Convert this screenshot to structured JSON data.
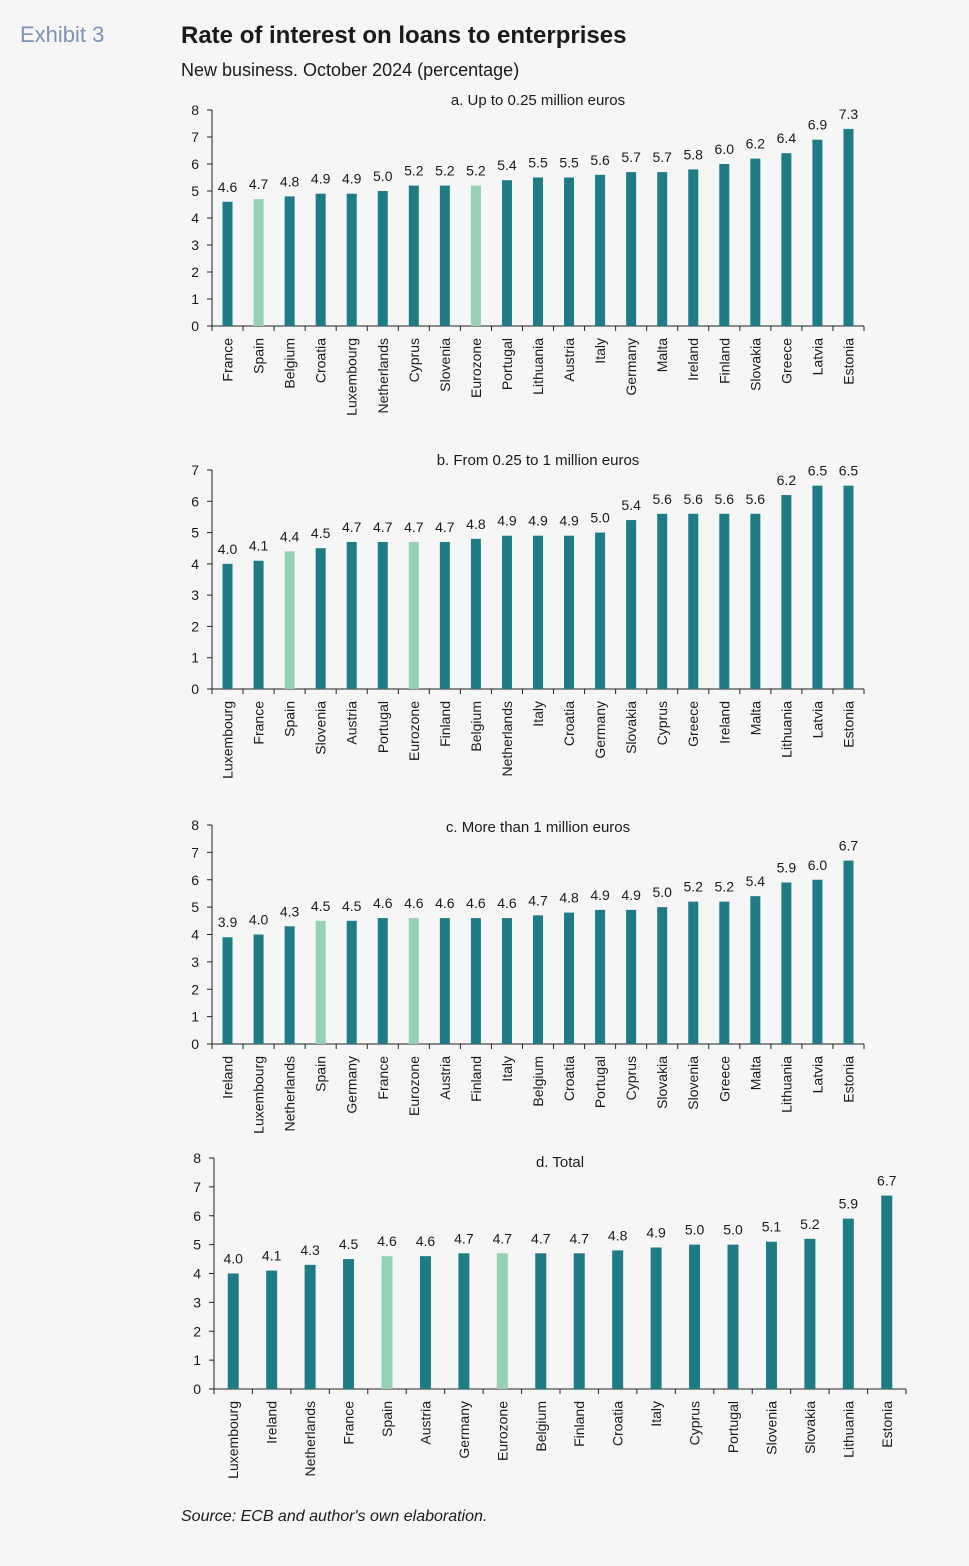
{
  "header": {
    "exhibit": "Exhibit 3",
    "title": "Rate of interest on loans to enterprises",
    "subtitle": "New business. October 2024 (percentage)"
  },
  "footer": {
    "source": "Source: ECB and author's own elaboration."
  },
  "colors": {
    "bar": "#1f7b85",
    "highlight": "#97d1b4",
    "axis": "#222222"
  },
  "chart_data": [
    {
      "type": "bar",
      "title": "a. Up to 0.25 million euros",
      "ylim": [
        0,
        8
      ],
      "yticks": [
        0,
        1,
        2,
        3,
        4,
        5,
        6,
        7,
        8
      ],
      "categories": [
        "France",
        "Spain",
        "Belgium",
        "Croatia",
        "Luxembourg",
        "Netherlands",
        "Cyprus",
        "Slovenia",
        "Eurozone",
        "Portugal",
        "Lithuania",
        "Austria",
        "Italy",
        "Germany",
        "Malta",
        "Ireland",
        "Finland",
        "Slovakia",
        "Greece",
        "Latvia",
        "Estonia"
      ],
      "values": [
        4.6,
        4.7,
        4.8,
        4.9,
        4.9,
        5.0,
        5.2,
        5.2,
        5.2,
        5.4,
        5.5,
        5.5,
        5.6,
        5.7,
        5.7,
        5.8,
        6.0,
        6.2,
        6.4,
        6.9,
        7.3
      ],
      "highlight": [
        "Spain",
        "Eurozone"
      ],
      "grid": false
    },
    {
      "type": "bar",
      "title": "b. From 0.25 to 1 million euros",
      "ylim": [
        0,
        7
      ],
      "yticks": [
        0,
        1,
        2,
        3,
        4,
        5,
        6,
        7
      ],
      "categories": [
        "Luxembourg",
        "France",
        "Spain",
        "Slovenia",
        "Austria",
        "Portugal",
        "Eurozone",
        "Finland",
        "Belgium",
        "Netherlands",
        "Italy",
        "Croatia",
        "Germany",
        "Slovakia",
        "Cyprus",
        "Greece",
        "Ireland",
        "Malta",
        "Lithuania",
        "Latvia",
        "Estonia"
      ],
      "values": [
        4.0,
        4.1,
        4.4,
        4.5,
        4.7,
        4.7,
        4.7,
        4.7,
        4.8,
        4.9,
        4.9,
        4.9,
        5.0,
        5.4,
        5.6,
        5.6,
        5.6,
        5.6,
        6.2,
        6.5,
        6.5
      ],
      "highlight": [
        "Spain",
        "Eurozone"
      ],
      "grid": false
    },
    {
      "type": "bar",
      "title": "c. More than 1 million euros",
      "ylim": [
        0,
        8
      ],
      "yticks": [
        0,
        1,
        2,
        3,
        4,
        5,
        6,
        7,
        8
      ],
      "categories": [
        "Ireland",
        "Luxembourg",
        "Netherlands",
        "Spain",
        "Germany",
        "France",
        "Eurozone",
        "Austria",
        "Finland",
        "Italy",
        "Belgium",
        "Croatia",
        "Portugal",
        "Cyprus",
        "Slovakia",
        "Slovenia",
        "Greece",
        "Malta",
        "Lithuania",
        "Latvia",
        "Estonia"
      ],
      "values": [
        3.9,
        4.0,
        4.3,
        4.5,
        4.5,
        4.6,
        4.6,
        4.6,
        4.6,
        4.6,
        4.7,
        4.8,
        4.9,
        4.9,
        5.0,
        5.2,
        5.2,
        5.4,
        5.9,
        6.0,
        6.7
      ],
      "highlight": [
        "Spain",
        "Eurozone"
      ],
      "grid": false
    },
    {
      "type": "bar",
      "title": "d. Total",
      "ylim": [
        0,
        8
      ],
      "yticks": [
        0,
        1,
        2,
        3,
        4,
        5,
        6,
        7,
        8
      ],
      "categories": [
        "Luxembourg",
        "Ireland",
        "Netherlands",
        "France",
        "Spain",
        "Austria",
        "Germany",
        "Eurozone",
        "Belgium",
        "Finland",
        "Croatia",
        "Italy",
        "Cyprus",
        "Portugal",
        "Slovenia",
        "Slovakia",
        "Lithuania",
        "Estonia"
      ],
      "values": [
        4.0,
        4.1,
        4.3,
        4.5,
        4.6,
        4.6,
        4.7,
        4.7,
        4.7,
        4.7,
        4.8,
        4.9,
        5.0,
        5.0,
        5.1,
        5.2,
        5.9,
        6.7
      ],
      "highlight": [
        "Spain",
        "Eurozone"
      ],
      "grid": false
    }
  ]
}
